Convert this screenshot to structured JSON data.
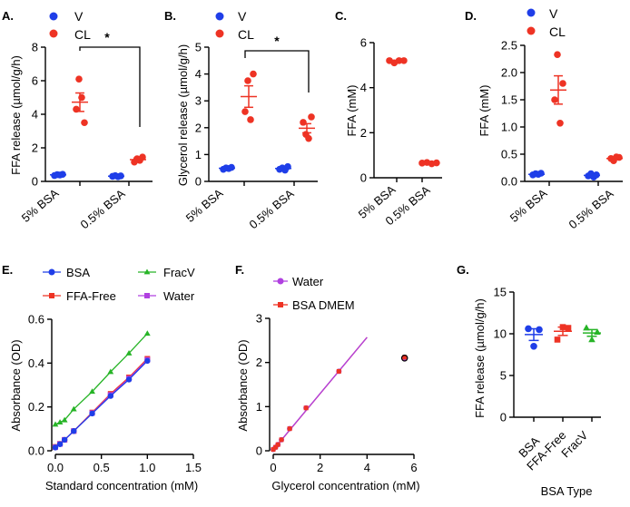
{
  "colors": {
    "v": "#1f3ee8",
    "cl": "#ee3324",
    "bsa": "#1f3ee8",
    "ffa_free": "#ee3324",
    "fracv": "#27b427",
    "water": "#b040e0",
    "bsa_dmem": "#ee3324",
    "black": "#000000"
  },
  "chart_data": [
    {
      "id": "A",
      "panel_label": "A.",
      "type": "scatter",
      "ylabel": "FFA release (µmol/g/h)",
      "ylim": [
        0,
        8
      ],
      "yticks": [
        "0",
        "2",
        "4",
        "6",
        "8"
      ],
      "categories": [
        "5% BSA",
        "0.5% BSA"
      ],
      "legend": [
        "V",
        "CL"
      ],
      "significance": "*",
      "series": [
        {
          "name": "V",
          "groups": [
            [
              0.35,
              0.4,
              0.38,
              0.42
            ],
            [
              0.3,
              0.34,
              0.28,
              0.33
            ]
          ],
          "means": [
            0.39,
            0.31
          ],
          "sem": [
            0.02,
            0.02
          ]
        },
        {
          "name": "CL",
          "groups": [
            [
              4.3,
              6.1,
              5.0,
              3.5
            ],
            [
              1.15,
              1.35,
              1.25,
              1.45
            ]
          ],
          "means": [
            4.72,
            1.3
          ],
          "sem": [
            0.55,
            0.09
          ]
        }
      ]
    },
    {
      "id": "B",
      "panel_label": "B.",
      "type": "scatter",
      "ylabel": "Glycerol release (µmol/g/h)",
      "ylim": [
        0,
        5
      ],
      "yticks": [
        "0",
        "1",
        "2",
        "3",
        "4",
        "5"
      ],
      "categories": [
        "5% BSA",
        "0.5% BSA"
      ],
      "legend": [
        "V",
        "CL"
      ],
      "significance": "*",
      "series": [
        {
          "name": "V",
          "groups": [
            [
              0.45,
              0.5,
              0.48,
              0.52
            ],
            [
              0.45,
              0.5,
              0.42,
              0.55
            ]
          ],
          "means": [
            0.49,
            0.48
          ],
          "sem": [
            0.03,
            0.03
          ]
        },
        {
          "name": "CL",
          "groups": [
            [
              2.6,
              3.75,
              2.3,
              4.0
            ],
            [
              2.2,
              1.75,
              1.6,
              2.4
            ]
          ],
          "means": [
            3.16,
            1.98
          ],
          "sem": [
            0.4,
            0.17
          ]
        }
      ]
    },
    {
      "id": "C",
      "panel_label": "C.",
      "type": "scatter",
      "ylabel": "FFA (mM)",
      "ylim": [
        0,
        6
      ],
      "yticks": [
        "0",
        "2",
        "4",
        "6"
      ],
      "categories": [
        "5% BSA",
        "0.5% BSA"
      ],
      "series": [
        {
          "name": "CL",
          "groups": [
            [
              5.2,
              5.1,
              5.2,
              5.2
            ],
            [
              0.65,
              0.68,
              0.62,
              0.66
            ]
          ],
          "means": [
            5.18,
            0.65
          ],
          "sem": [
            0.03,
            0.01
          ]
        }
      ]
    },
    {
      "id": "D",
      "panel_label": "D.",
      "type": "scatter",
      "ylabel": "FFA (mM)",
      "ylim": [
        0,
        2.5
      ],
      "yticks": [
        "0.0",
        "0.5",
        "1.0",
        "1.5",
        "2.0",
        "2.5"
      ],
      "categories": [
        "5% BSA",
        "0.5% BSA"
      ],
      "legend": [
        "V",
        "CL"
      ],
      "series": [
        {
          "name": "V",
          "groups": [
            [
              0.12,
              0.14,
              0.13,
              0.15
            ],
            [
              0.1,
              0.14,
              0.08,
              0.12
            ]
          ],
          "means": [
            0.13,
            0.11
          ],
          "sem": [
            0.01,
            0.02
          ]
        },
        {
          "name": "CL",
          "groups": [
            [
              1.5,
              2.33,
              1.07,
              1.8
            ],
            [
              0.42,
              0.38,
              0.45,
              0.44
            ]
          ],
          "means": [
            1.68,
            0.42
          ],
          "sem": [
            0.26,
            0.02
          ]
        }
      ]
    },
    {
      "id": "E",
      "panel_label": "E.",
      "type": "line",
      "xlabel": "Standard concentration (mM)",
      "ylabel": "Absorbance (OD)",
      "xlim": [
        0,
        1.5
      ],
      "ylim": [
        0,
        0.6
      ],
      "xticks": [
        "0.0",
        "0.5",
        "1.0",
        "1.5"
      ],
      "yticks": [
        "0.0",
        "0.2",
        "0.4",
        "0.6"
      ],
      "x": [
        0,
        0.05,
        0.1,
        0.2,
        0.4,
        0.6,
        0.8,
        1.0
      ],
      "series": [
        {
          "name": "BSA",
          "values": [
            0.015,
            0.03,
            0.05,
            0.09,
            0.17,
            0.25,
            0.325,
            0.41
          ]
        },
        {
          "name": "FracV",
          "values": [
            0.12,
            0.13,
            0.14,
            0.19,
            0.27,
            0.36,
            0.445,
            0.535
          ]
        },
        {
          "name": "FFA-Free",
          "values": [
            0.018,
            0.032,
            0.05,
            0.09,
            0.175,
            0.26,
            0.335,
            0.42
          ]
        },
        {
          "name": "Water",
          "values": [
            0.016,
            0.031,
            0.05,
            0.09,
            0.172,
            0.255,
            0.33,
            0.415
          ]
        }
      ]
    },
    {
      "id": "F",
      "panel_label": "F.",
      "type": "line",
      "xlabel": "Glycerol concentration (mM)",
      "ylabel": "Absorbance (OD)",
      "xlim": [
        0,
        6
      ],
      "ylim": [
        0,
        3
      ],
      "xticks": [
        "0",
        "2",
        "4",
        "6"
      ],
      "yticks": [
        "0",
        "1",
        "2",
        "3"
      ],
      "x": [
        0,
        0.1,
        0.2,
        0.35,
        0.7,
        1.4,
        2.8,
        5.6
      ],
      "series": [
        {
          "name": "Water",
          "values": [
            0.03,
            0.08,
            0.14,
            0.25,
            0.5,
            0.97,
            1.8,
            2.1
          ]
        },
        {
          "name": "BSA DMEM",
          "values": [
            0.03,
            0.08,
            0.14,
            0.25,
            0.5,
            0.97,
            1.8,
            2.12
          ]
        }
      ]
    },
    {
      "id": "G",
      "panel_label": "G.",
      "type": "scatter",
      "xlabel": "BSA Type",
      "ylabel": "FFA release (µmol/g/h)",
      "ylim": [
        0,
        15
      ],
      "yticks": [
        "0",
        "5",
        "10",
        "15"
      ],
      "categories": [
        "BSA",
        "FFA-Free",
        "FracV"
      ],
      "series": [
        {
          "name": "BSA",
          "values": [
            10.6,
            8.5,
            10.5
          ],
          "mean": 9.9,
          "sem": 0.7
        },
        {
          "name": "FFA-Free",
          "values": [
            9.3,
            10.8,
            10.7
          ],
          "mean": 10.3,
          "sem": 0.5
        },
        {
          "name": "FracV",
          "values": [
            10.7,
            9.3,
            10.2
          ],
          "mean": 10.1,
          "sem": 0.4
        }
      ]
    }
  ]
}
